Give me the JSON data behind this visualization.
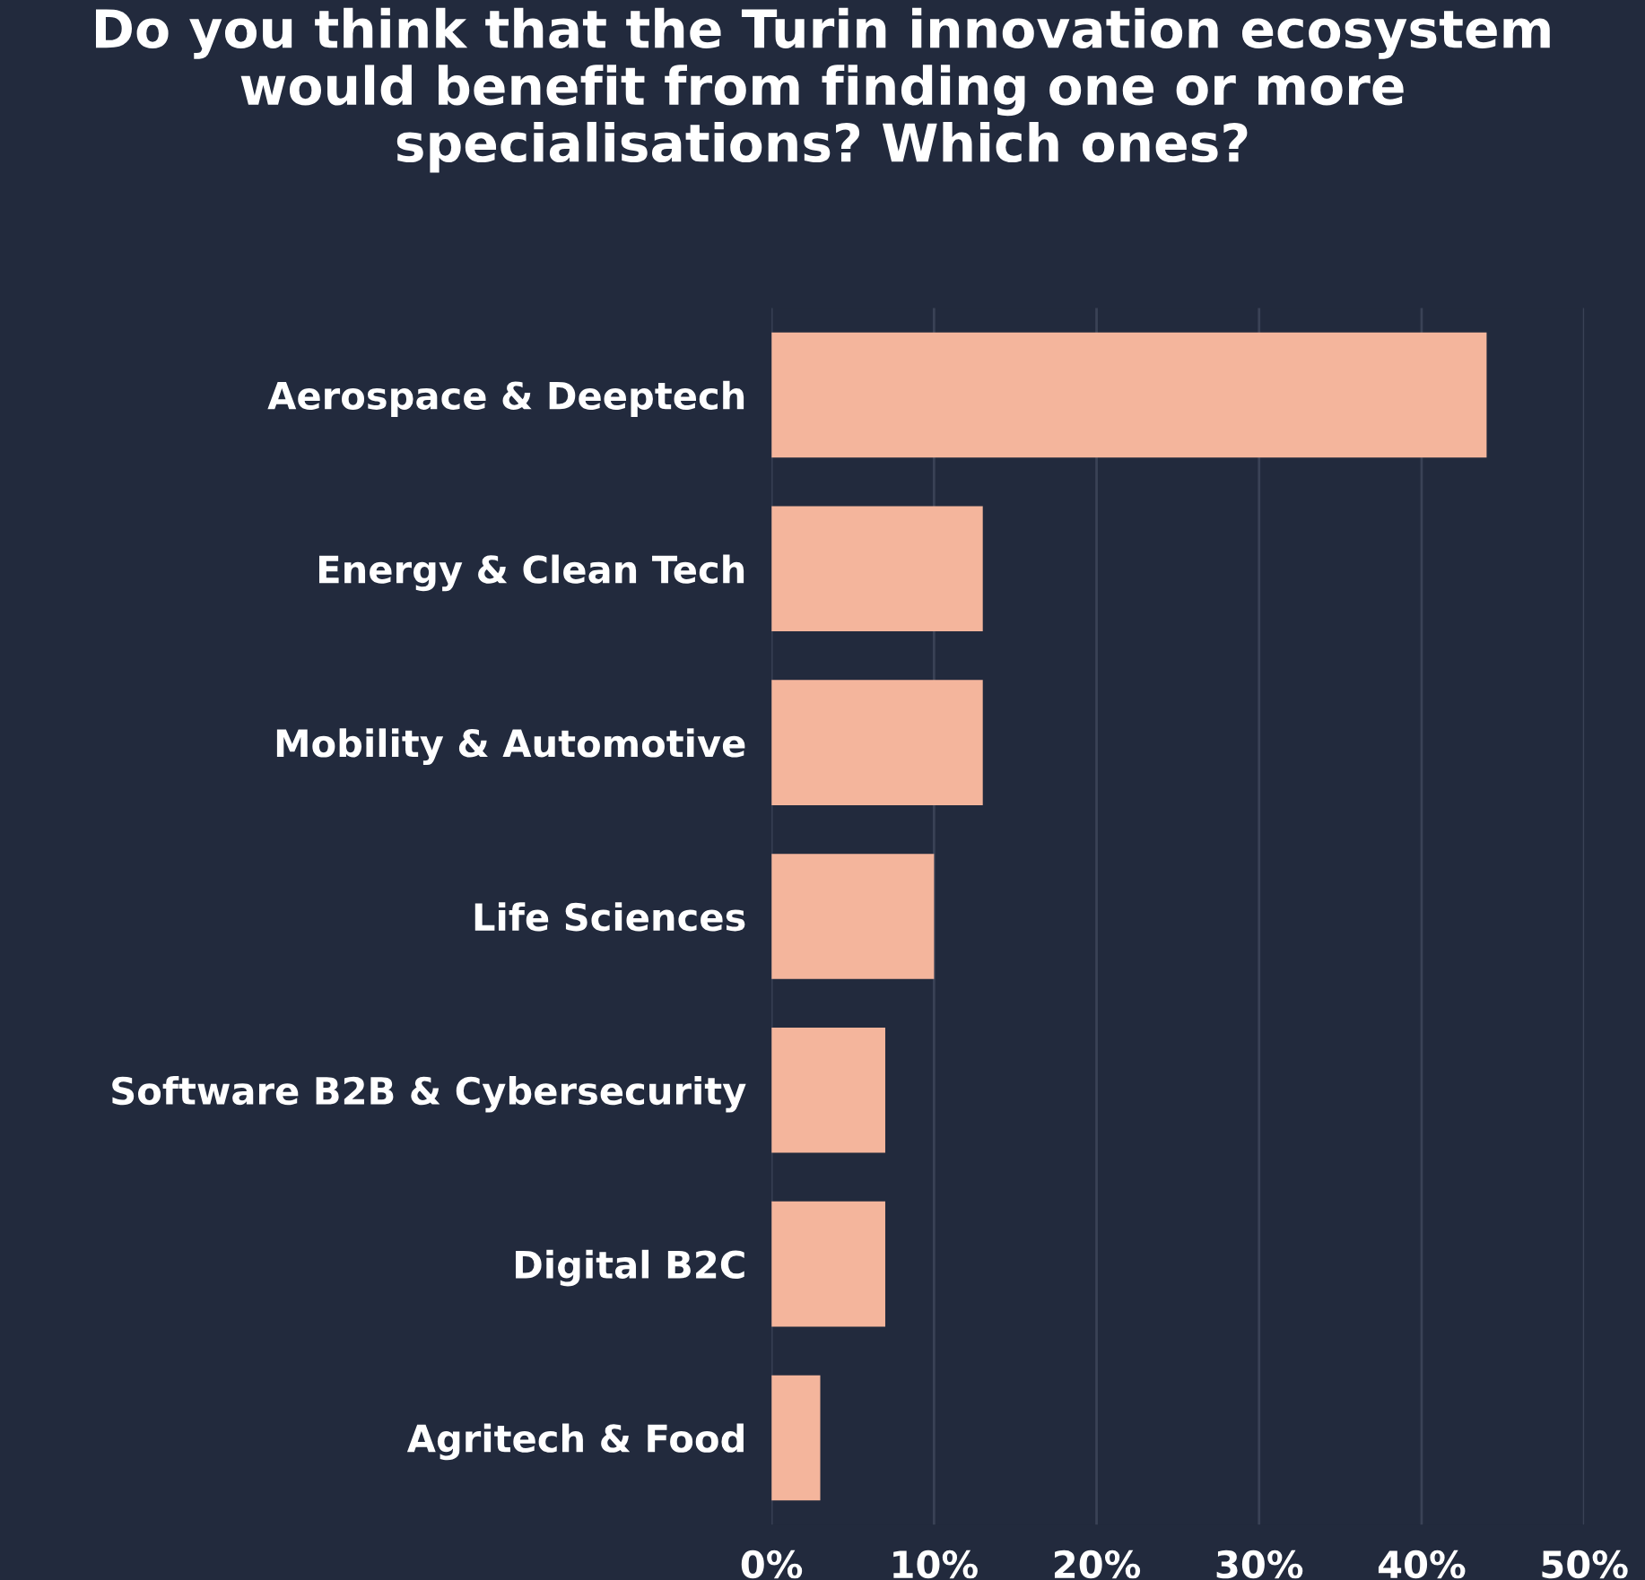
{
  "chart_data": {
    "type": "bar",
    "orientation": "horizontal",
    "title": "Do you think that the Turin innovation ecosystem would benefit from finding one or more specialisations? Which ones?",
    "categories": [
      "Aerospace & Deeptech",
      "Energy & Clean Tech",
      "Mobility & Automotive",
      "Life Sciences",
      "Software B2B & Cybersecurity",
      "Digital B2C",
      "Agritech & Food"
    ],
    "values": [
      44,
      13,
      13,
      10,
      7,
      7,
      3
    ],
    "color": "#f4b59c",
    "xlim": [
      0,
      50
    ],
    "xticks": [
      {
        "value": 0,
        "label": "0%"
      },
      {
        "value": 10,
        "label": "10%"
      },
      {
        "value": 20,
        "label": "20%"
      },
      {
        "value": 30,
        "label": "30%"
      },
      {
        "value": 40,
        "label": "40%"
      },
      {
        "value": 50,
        "label": "50%"
      }
    ],
    "grid": "x"
  }
}
